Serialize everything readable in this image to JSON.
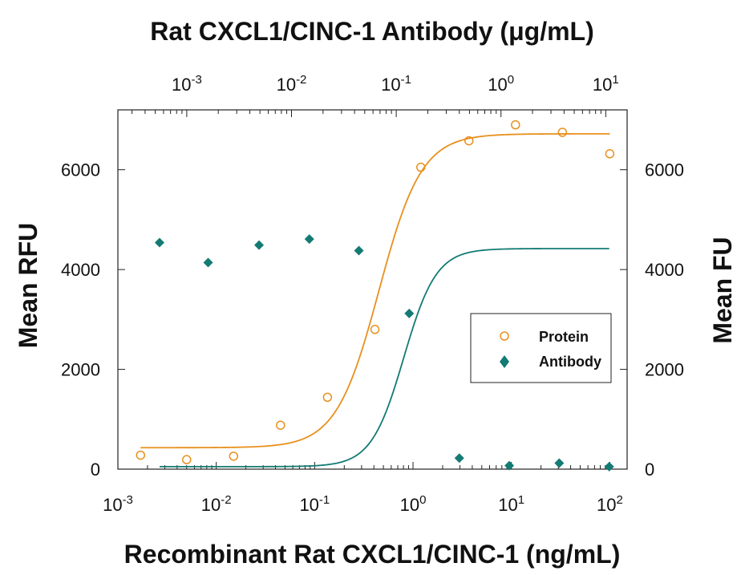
{
  "chart_data": {
    "type": "scatter",
    "title": "",
    "top_axis_label": "Rat CXCL1/CINC-1 Antibody (μg/mL)",
    "xlabel": "Recombinant Rat CXCL1/CINC-1 (ng/mL)",
    "ylabel_left": "Mean RFU",
    "ylabel_right": "Mean FU",
    "x_scale": "log",
    "top_x_scale": "log",
    "xlim": [
      0.001,
      150
    ],
    "top_xlim": [
      0.00022,
      16
    ],
    "ylim": [
      0,
      7200
    ],
    "grid": false,
    "legend_position": "center-right",
    "bottom_ticks": [
      {
        "value": 0.001,
        "base": "10",
        "exp": "-3"
      },
      {
        "value": 0.01,
        "base": "10",
        "exp": "-2"
      },
      {
        "value": 0.1,
        "base": "10",
        "exp": "-1"
      },
      {
        "value": 1,
        "base": "10",
        "exp": "0"
      },
      {
        "value": 10,
        "base": "10",
        "exp": "1"
      },
      {
        "value": 100,
        "base": "10",
        "exp": "2"
      }
    ],
    "top_ticks": [
      {
        "value": 0.001,
        "base": "10",
        "exp": "-3"
      },
      {
        "value": 0.01,
        "base": "10",
        "exp": "-2"
      },
      {
        "value": 0.1,
        "base": "10",
        "exp": "-1"
      },
      {
        "value": 1,
        "base": "10",
        "exp": "0"
      },
      {
        "value": 10,
        "base": "10",
        "exp": "1"
      }
    ],
    "left_ticks": [
      "0",
      "2000",
      "4000",
      "6000"
    ],
    "right_ticks": [
      "0",
      "2000",
      "4000",
      "6000"
    ],
    "y_tick_values": [
      0,
      2000,
      4000,
      6000
    ],
    "series": [
      {
        "name": "Protein",
        "color": "#E8901E",
        "marker": "open-circle",
        "axis": "bottom",
        "x": [
          0.0017,
          0.005,
          0.015,
          0.045,
          0.135,
          0.41,
          1.2,
          3.7,
          11,
          33,
          100
        ],
        "y": [
          280,
          190,
          260,
          880,
          1440,
          2800,
          6050,
          6580,
          6900,
          6750,
          6320
        ],
        "fit": {
          "bottom": 430,
          "top": 6720,
          "ec50": 0.45,
          "hill": 2.0
        }
      },
      {
        "name": "Antibody",
        "color": "#137B74",
        "marker": "filled-diamond",
        "axis": "top",
        "x": [
          0.00055,
          0.0016,
          0.0049,
          0.0148,
          0.044,
          0.133,
          0.4,
          1.2,
          3.6,
          10.8
        ],
        "y": [
          4540,
          4140,
          4490,
          4610,
          4380,
          3120,
          220,
          70,
          120,
          50
        ],
        "fit": {
          "bottom": 50,
          "top": 4420,
          "ec50": 0.118,
          "hill": 2.8
        }
      }
    ]
  }
}
